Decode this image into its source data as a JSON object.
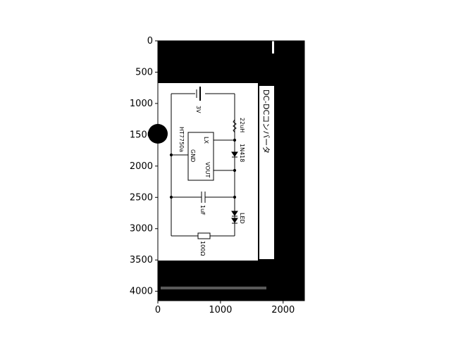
{
  "axes": {
    "xlim": [
      0,
      2340
    ],
    "ylim": [
      4150,
      0
    ],
    "x_ticks": [
      0,
      1000,
      2000
    ],
    "y_ticks": [
      0,
      500,
      1000,
      1500,
      2000,
      2500,
      3000,
      3500,
      4000
    ]
  },
  "schematic": {
    "title": "DC-DCコンバータ",
    "ic_part": "HT7750a",
    "pin_lx": "LX",
    "pin_gnd": "GND",
    "pin_vout": "VOUT",
    "battery": "3V",
    "inductor": "22uH",
    "diode": "1N418",
    "capacitor": "1uF",
    "led": "LED",
    "resistor": "100Ω"
  },
  "colors": {
    "background": "#000000",
    "paper": "#ffffff",
    "ink": "#000000"
  }
}
